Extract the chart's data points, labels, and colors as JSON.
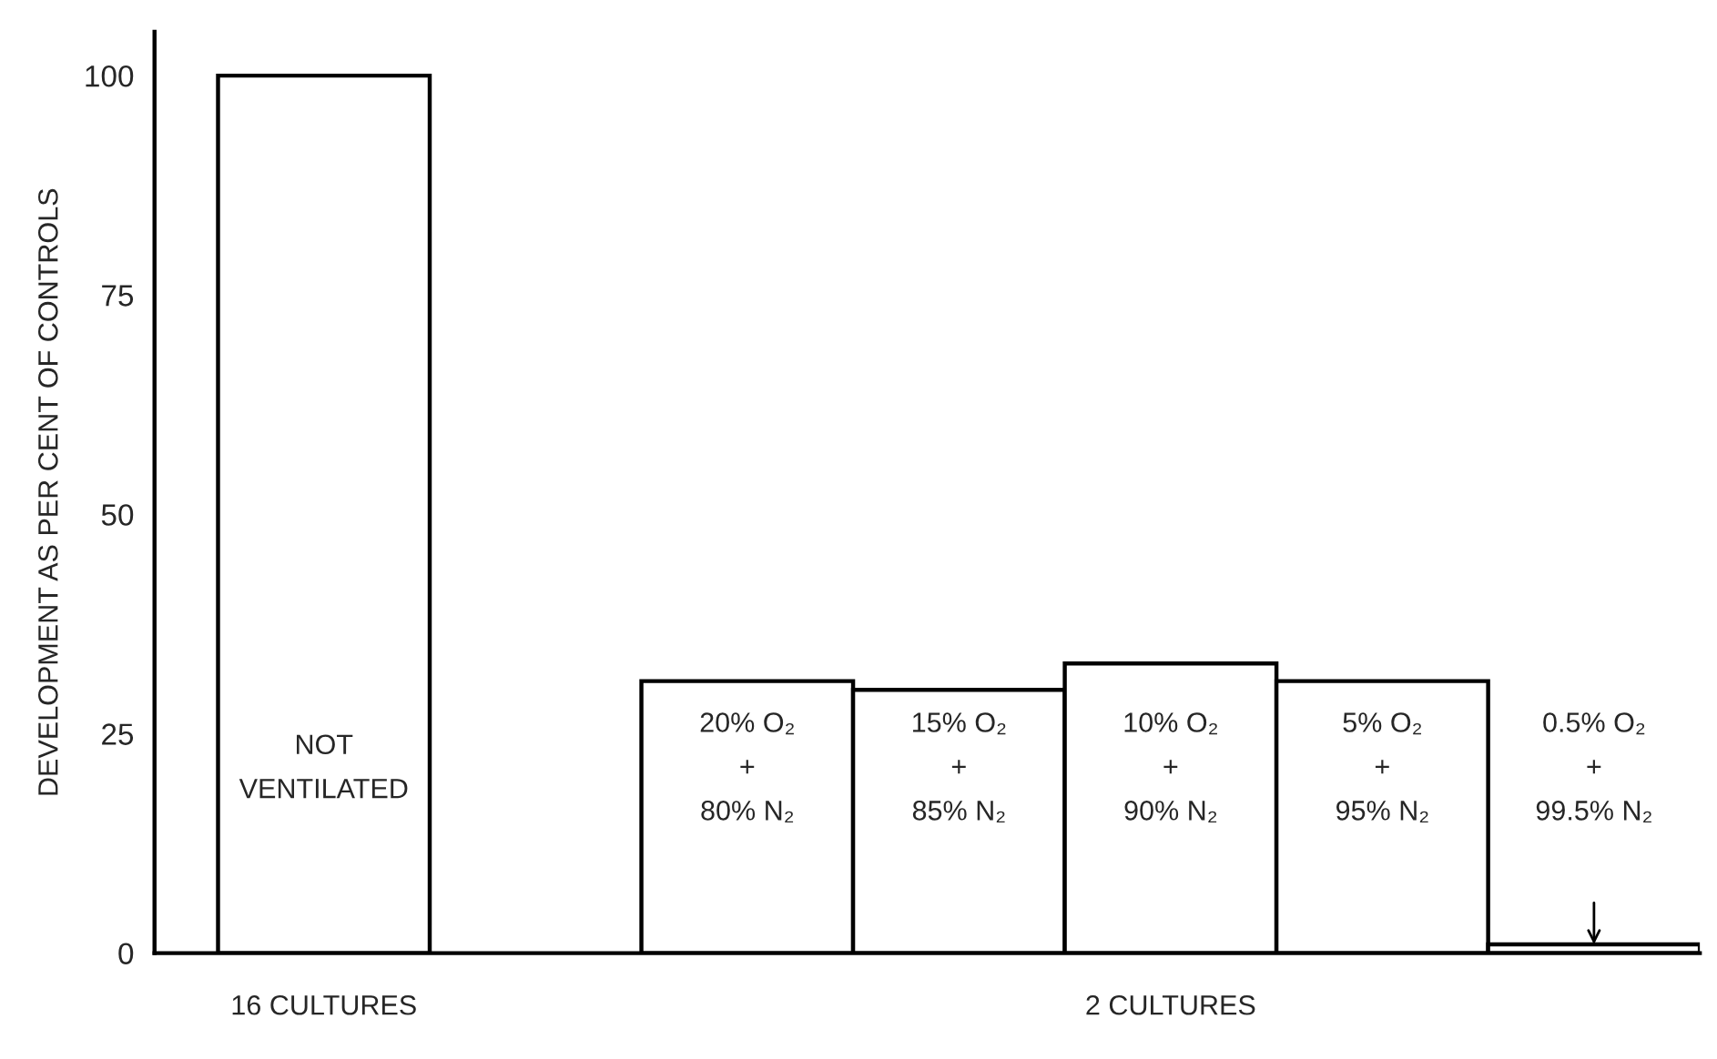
{
  "chart_data": {
    "type": "bar",
    "ylabel": "DEVELOPMENT AS PER CENT OF CONTROLS",
    "categories": [
      "NOT\nVENTILATED",
      null,
      "20% O₂\n+\n80% N₂",
      "15% O₂\n+\n85% N₂",
      "10% O₂\n+\n90% N₂",
      "5% O₂\n+\n95% N₂",
      "0.5% O₂\n+\n99.5% N₂"
    ],
    "values": [
      100,
      null,
      31,
      30,
      33,
      31,
      1
    ],
    "color": "#ffffff",
    "ylim": [
      0,
      105
    ],
    "yticks": [
      0,
      25,
      50,
      75,
      100
    ],
    "annotations": [
      "16 CULTURES",
      "2 CULTURES"
    ],
    "grid": false,
    "legend": false
  }
}
